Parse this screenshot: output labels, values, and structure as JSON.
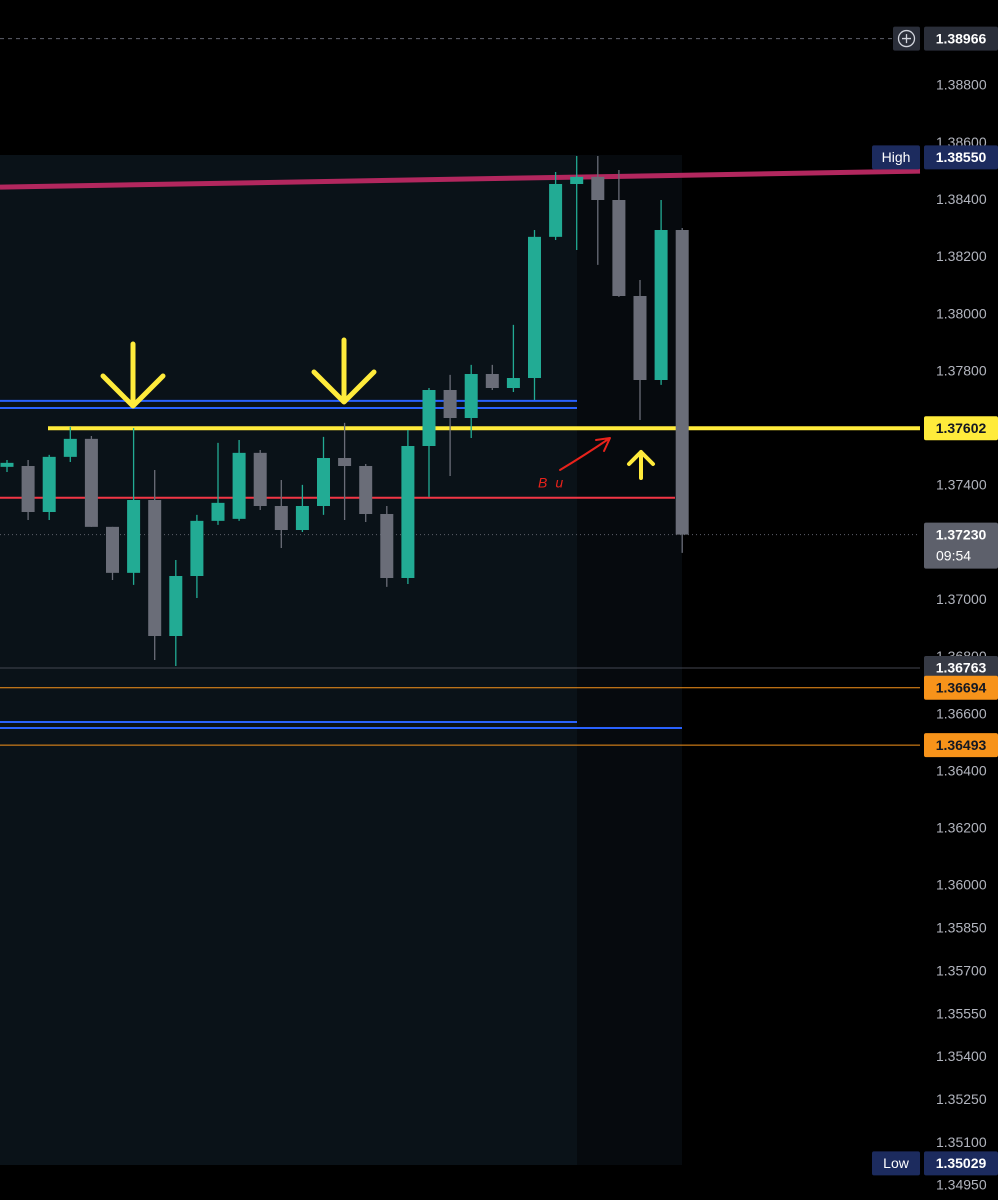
{
  "chart_data": {
    "type": "candlestick",
    "open": [
      1.37467,
      1.3747,
      1.37309,
      1.37502,
      1.37565,
      1.37257,
      1.37096,
      1.37351,
      1.36875,
      1.37085,
      1.37278,
      1.37285,
      1.37516,
      1.3733,
      1.37246,
      1.3733,
      1.37498,
      1.3747,
      1.37302,
      1.37078,
      1.3754,
      1.37736,
      1.37638,
      1.37792,
      1.37743,
      1.37778,
      1.38272,
      1.38457,
      1.38482,
      1.38401,
      1.38065,
      1.37771,
      1.38296
    ],
    "high": [
      1.37491,
      1.37491,
      1.37509,
      1.37607,
      1.37575,
      1.37257,
      1.37603,
      1.37456,
      1.37141,
      1.37299,
      1.37551,
      1.37561,
      1.37526,
      1.37421,
      1.37404,
      1.37572,
      1.37621,
      1.37477,
      1.3733,
      1.37596,
      1.37743,
      1.37789,
      1.37824,
      1.37824,
      1.37964,
      1.38296,
      1.38499,
      1.38555,
      1.38555,
      1.38506,
      1.38121,
      1.38401,
      1.38303
    ],
    "low": [
      1.37449,
      1.37281,
      1.37281,
      1.37484,
      1.37257,
      1.37071,
      1.37054,
      1.36791,
      1.3677,
      1.37008,
      1.37264,
      1.37278,
      1.37316,
      1.37183,
      1.37239,
      1.37299,
      1.37281,
      1.37274,
      1.37047,
      1.37057,
      1.37362,
      1.37435,
      1.37568,
      1.37736,
      1.37729,
      1.37701,
      1.38261,
      1.38226,
      1.38174,
      1.38062,
      1.37631,
      1.37754,
      1.37166
    ],
    "close": [
      1.37481,
      1.37309,
      1.37502,
      1.37565,
      1.37257,
      1.37096,
      1.37351,
      1.36875,
      1.37085,
      1.37278,
      1.37341,
      1.37516,
      1.3733,
      1.37246,
      1.3733,
      1.37498,
      1.3747,
      1.37302,
      1.37078,
      1.3754,
      1.37736,
      1.37638,
      1.37792,
      1.37743,
      1.37778,
      1.38272,
      1.38457,
      1.38482,
      1.38401,
      1.38065,
      1.37771,
      1.38296,
      1.3723
    ],
    "up_color": "#22ab94",
    "down_color": "#6a6d78",
    "ylim": [
      1.34901,
      1.39101
    ],
    "yticks": [
      {
        "value": 1.388,
        "label": "1.38800"
      },
      {
        "value": 1.386,
        "label": "1.38600"
      },
      {
        "value": 1.384,
        "label": "1.38400"
      },
      {
        "value": 1.382,
        "label": "1.38200"
      },
      {
        "value": 1.38,
        "label": "1.38000"
      },
      {
        "value": 1.378,
        "label": "1.37800"
      },
      {
        "value": 1.374,
        "label": "1.37400"
      },
      {
        "value": 1.37,
        "label": "1.37000"
      },
      {
        "value": 1.368,
        "label": "1.36800"
      },
      {
        "value": 1.366,
        "label": "1.36600"
      },
      {
        "value": 1.364,
        "label": "1.36400"
      },
      {
        "value": 1.362,
        "label": "1.36200"
      },
      {
        "value": 1.36,
        "label": "1.36000"
      },
      {
        "value": 1.3585,
        "label": "1.35850"
      },
      {
        "value": 1.357,
        "label": "1.35700"
      },
      {
        "value": 1.3555,
        "label": "1.35550"
      },
      {
        "value": 1.354,
        "label": "1.35400"
      },
      {
        "value": 1.3525,
        "label": "1.35250"
      },
      {
        "value": 1.351,
        "label": "1.35100"
      },
      {
        "value": 1.3495,
        "label": "1.34950"
      }
    ],
    "trendline": {
      "color": "#b2275e",
      "values": [
        1.38446,
        1.38502
      ]
    },
    "levels": [
      {
        "value": 1.37698,
        "color": "#2962ff"
      },
      {
        "value": 1.37673,
        "color": "#2962ff"
      },
      {
        "value": 1.37359,
        "color": "#f23645"
      },
      {
        "value": 1.36574,
        "color": "#2962ff"
      },
      {
        "value": 1.36553,
        "color": "#2962ff"
      }
    ],
    "price_labels": [
      {
        "value": 1.38966,
        "label": "1.38966",
        "color": "#2a2e39",
        "text_color": "#ffffff",
        "line": "dashed",
        "line_color": "#5d606b",
        "line_width": 1
      },
      {
        "name": "High",
        "value": 1.3855,
        "label": "1.38550",
        "color": "#1c2b5e",
        "text_color": "#ffffff"
      },
      {
        "value": 1.37602,
        "label": "1.37602",
        "color": "#ffeb3b",
        "text_color": "#131722",
        "line": "solid",
        "line_color": "#ffeb3b",
        "line_width": 4
      },
      {
        "value": 1.3723,
        "label": "1.37230",
        "countdown": "09:54",
        "color": "#5d606b",
        "text_color": "#ffffff",
        "line": "dotted",
        "line_color": "#5d606b",
        "line_width": 1
      },
      {
        "value": 1.36763,
        "label": "1.36763",
        "color": "#363a45",
        "text_color": "#ffffff",
        "line": "solid",
        "line_color": "#434651",
        "line_width": 1
      },
      {
        "value": 1.36694,
        "label": "1.36694",
        "color": "#f7931a",
        "text_color": "#131722",
        "line": "solid",
        "line_color": "#f7931a",
        "line_width": 1
      },
      {
        "value": 1.36493,
        "label": "1.36493",
        "color": "#f7931a",
        "text_color": "#131722",
        "line": "solid",
        "line_color": "#f7931a",
        "line_width": 1
      },
      {
        "name": "Low",
        "value": 1.35029,
        "label": "1.35029",
        "color": "#1c2b5e",
        "text_color": "#ffffff"
      }
    ],
    "annotations": [
      {
        "text": "Bu",
        "color": "#e8221b"
      }
    ]
  }
}
